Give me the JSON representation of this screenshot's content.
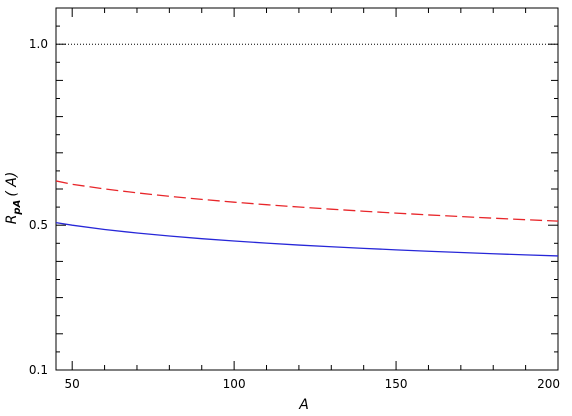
{
  "chart_data": {
    "type": "line",
    "xlabel": "A",
    "ylabel": {
      "main": "R",
      "sub": "pA",
      "arg": "( A)"
    },
    "xlim": [
      45,
      200
    ],
    "ylim": [
      0.1,
      1.1
    ],
    "x_ticks": [
      {
        "value": 50,
        "label": "50"
      },
      {
        "value": 100,
        "label": "100"
      },
      {
        "value": 150,
        "label": "150"
      },
      {
        "value": 200,
        "label": "200"
      }
    ],
    "y_ticks": [
      {
        "value": 0.1,
        "label": "0.1"
      },
      {
        "value": 0.5,
        "label": "0.5"
      },
      {
        "value": 1.0,
        "label": "1.0"
      }
    ],
    "reference_line": {
      "y": 1.0,
      "style": "dotted",
      "color": "#000000"
    },
    "series": [
      {
        "style": "dashed",
        "color": "#e8262a",
        "x": [
          45,
          50,
          60,
          70,
          80,
          90,
          100,
          110,
          120,
          130,
          140,
          150,
          160,
          170,
          180,
          190,
          200
        ],
        "y": [
          0.6223,
          0.613,
          0.6002,
          0.5893,
          0.5798,
          0.5713,
          0.5636,
          0.5566,
          0.5502,
          0.5442,
          0.5386,
          0.5334,
          0.5284,
          0.5238,
          0.5194,
          0.5152,
          0.5112
        ]
      },
      {
        "style": "solid",
        "color": "#2727d8",
        "x": [
          45,
          50,
          60,
          70,
          80,
          90,
          100,
          110,
          120,
          130,
          140,
          150,
          160,
          170,
          180,
          190,
          200
        ],
        "y": [
          0.5071,
          0.5,
          0.4882,
          0.4784,
          0.4701,
          0.4628,
          0.4563,
          0.4505,
          0.4452,
          0.4404,
          0.436,
          0.4319,
          0.4281,
          0.4245,
          0.4212,
          0.418,
          0.4151
        ]
      }
    ]
  }
}
